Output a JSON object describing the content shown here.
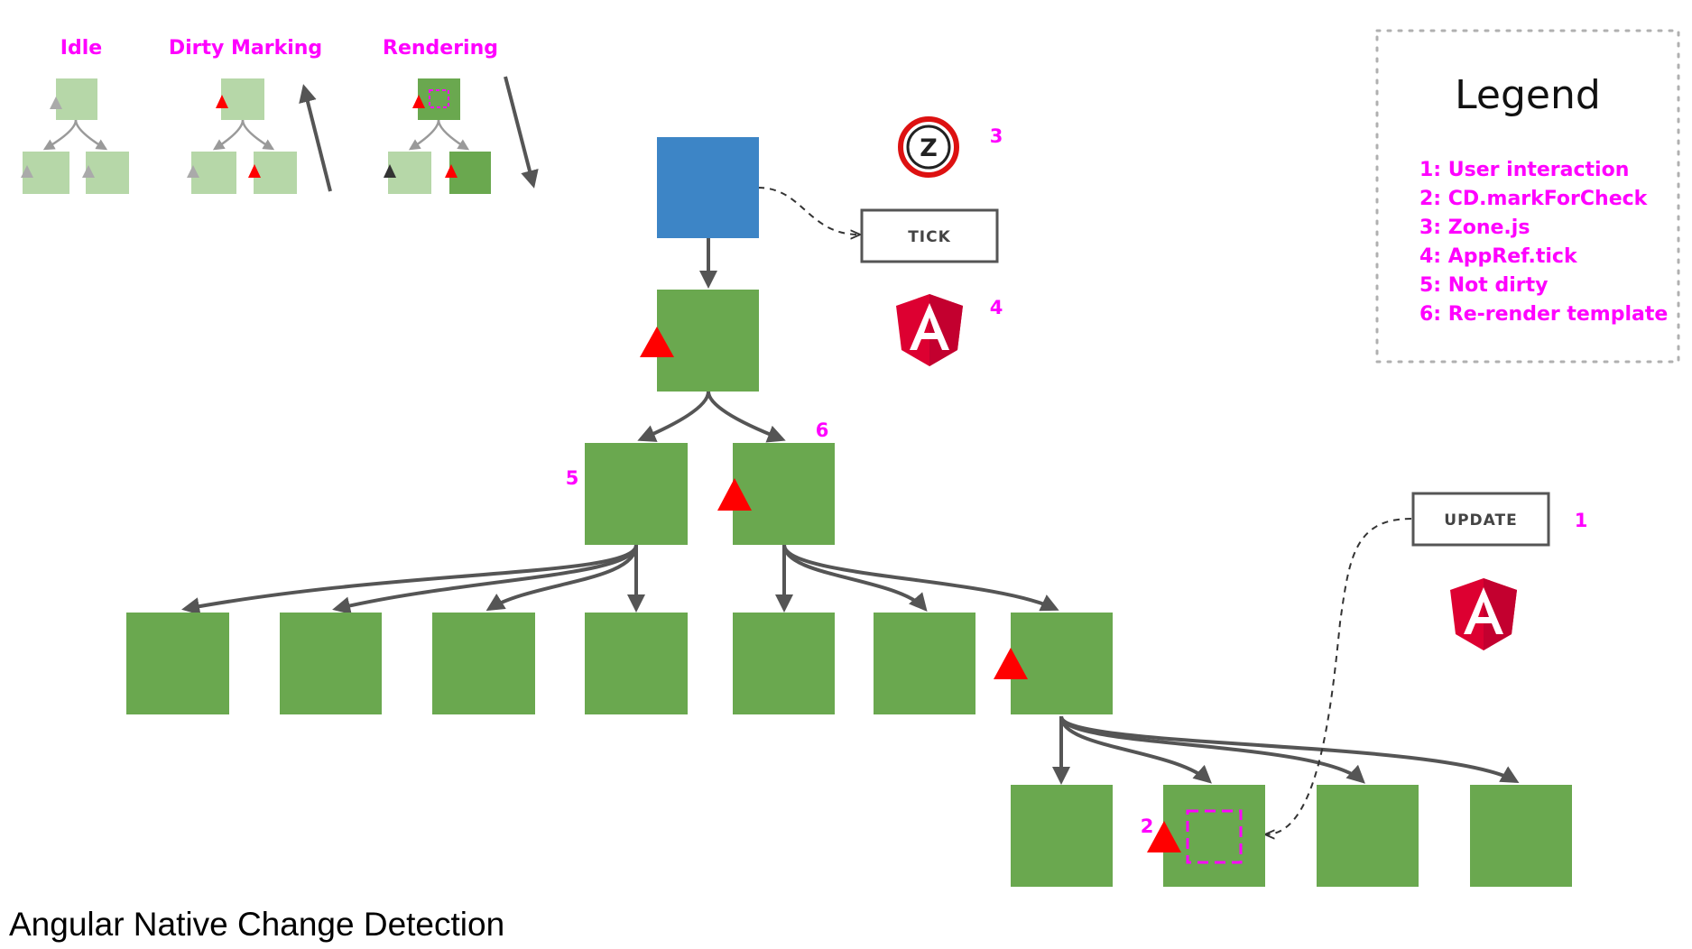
{
  "caption": "Angular Native Change Detection",
  "stages": [
    {
      "title": "Idle"
    },
    {
      "title": "Dirty Marking"
    },
    {
      "title": "Rendering"
    }
  ],
  "boxes": {
    "tick": "TICK",
    "update": "UPDATE"
  },
  "zone_icon_letter": "Z",
  "markers": [
    "1",
    "2",
    "3",
    "4",
    "5",
    "6"
  ],
  "legend": {
    "title": "Legend",
    "items": [
      "1: User interaction",
      "2: CD.markForCheck",
      "3: Zone.js",
      "4: AppRef.tick",
      "5: Not dirty",
      "6: Re-render template"
    ]
  },
  "colors": {
    "node_green": "#6aa84f",
    "node_light_green": "#b6d7a8",
    "root_blue": "#3d85c6",
    "marker_red": "#ff0000",
    "label_magenta": "#ff00ff",
    "edge_gray": "#555555",
    "angular_red": "#dd0031"
  }
}
